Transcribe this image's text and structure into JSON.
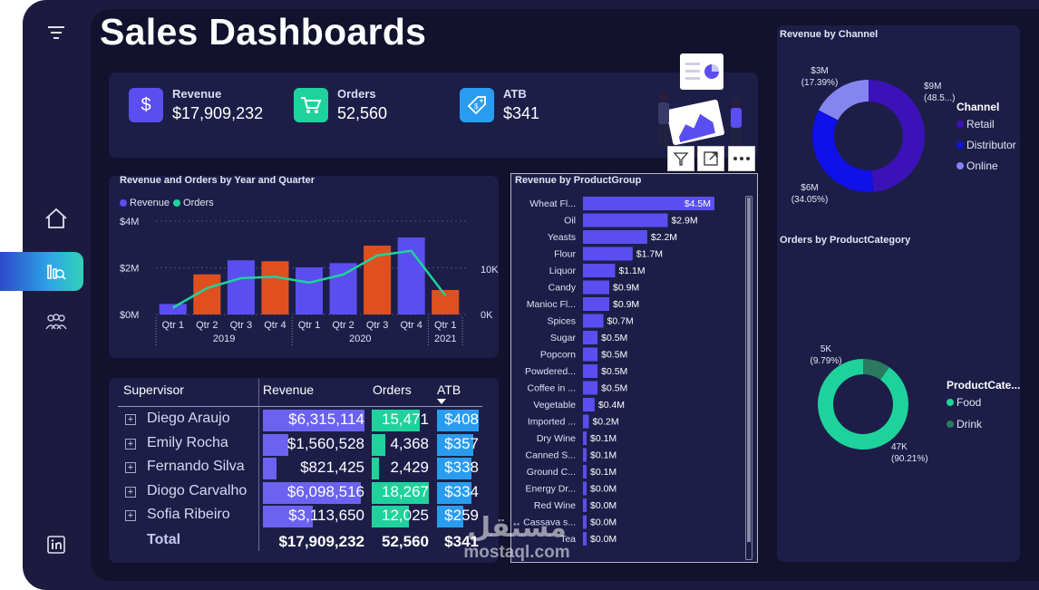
{
  "page": {
    "title": "Sales Dashboards"
  },
  "sidebar": {
    "icons": [
      "filter-icon",
      "home-icon",
      "analytics-icon",
      "users-icon",
      "linkedin-icon"
    ]
  },
  "kpis": [
    {
      "label": "Revenue",
      "value": "$17,909,232",
      "icon": "dollar-icon",
      "color": "#5b4ef0"
    },
    {
      "label": "Orders",
      "value": "52,560",
      "icon": "cart-icon",
      "color": "#1ed39b"
    },
    {
      "label": "ATB",
      "value": "$341",
      "icon": "tag-icon",
      "color": "#2a9cf0"
    }
  ],
  "year_quarter_chart": {
    "title": "Revenue and Orders by Year and Quarter",
    "legend": [
      "Revenue",
      "Orders"
    ],
    "left_axis_ticks": [
      "$4M",
      "$2M",
      "$0M"
    ],
    "right_axis_ticks": [
      "10K",
      "0K"
    ],
    "quarters": [
      "Qtr 1",
      "Qtr 2",
      "Qtr 3",
      "Qtr 4",
      "Qtr 1",
      "Qtr 2",
      "Qtr 3",
      "Qtr 4",
      "Qtr 1"
    ],
    "years": [
      "2019",
      "2020",
      "2021"
    ]
  },
  "product_group_chart": {
    "title": "Revenue by ProductGroup"
  },
  "table": {
    "headers": {
      "supervisor": "Supervisor",
      "revenue": "Revenue",
      "orders": "Orders",
      "atb": "ATB"
    },
    "rows": [
      {
        "name": "Diego Araujo",
        "revenue": "$6,315,114",
        "orders": "15,471",
        "atb": "$408"
      },
      {
        "name": "Emily Rocha",
        "revenue": "$1,560,528",
        "orders": "4,368",
        "atb": "$357"
      },
      {
        "name": "Fernando Silva",
        "revenue": "$821,425",
        "orders": "2,429",
        "atb": "$338"
      },
      {
        "name": "Diogo Carvalho",
        "revenue": "$6,098,516",
        "orders": "18,267",
        "atb": "$334"
      },
      {
        "name": "Sofia Ribeiro",
        "revenue": "$3,113,650",
        "orders": "12,025",
        "atb": "$259"
      }
    ],
    "total": {
      "label": "Total",
      "revenue": "$17,909,232",
      "orders": "52,560",
      "atb": "$341"
    }
  },
  "channel_chart": {
    "title": "Revenue by Channel",
    "legend_title": "Channel",
    "slices": [
      {
        "name": "Retail",
        "label": "$9M",
        "pct": "(48.5...)",
        "value": 48.56,
        "color": "#3a12b8"
      },
      {
        "name": "Distributor",
        "label": "$6M",
        "pct": "(34.05%)",
        "value": 34.05,
        "color": "#1010e8"
      },
      {
        "name": "Online",
        "label": "$3M",
        "pct": "(17.39%)",
        "value": 17.39,
        "color": "#8585f0"
      }
    ]
  },
  "category_chart": {
    "title": "Orders by ProductCategory",
    "legend_title": "ProductCate...",
    "slices": [
      {
        "name": "Food",
        "label": "47K",
        "pct": "(90.21%)",
        "value": 90.21,
        "color": "#1ed39b"
      },
      {
        "name": "Drink",
        "label": "5K",
        "pct": "(9.79%)",
        "value": 9.79,
        "color": "#2a7a60"
      }
    ]
  },
  "watermark": {
    "arabic": "مستقل",
    "latin": "mostaql.com"
  },
  "chart_data": [
    {
      "type": "bar",
      "title": "Revenue and Orders by Year and Quarter",
      "categories": [
        "2019 Qtr 1",
        "2019 Qtr 2",
        "2019 Qtr 3",
        "2019 Qtr 4",
        "2020 Qtr 1",
        "2020 Qtr 2",
        "2020 Qtr 3",
        "2020 Qtr 4",
        "2021 Qtr 1"
      ],
      "series": [
        {
          "name": "Revenue",
          "type": "bar",
          "values": [
            0.45,
            1.72,
            2.32,
            2.28,
            2.02,
            2.2,
            2.95,
            3.3,
            1.05
          ],
          "colors": [
            "#5b4ef0",
            "#e0501e",
            "#5b4ef0",
            "#e0501e",
            "#5b4ef0",
            "#5b4ef0",
            "#e0501e",
            "#5b4ef0",
            "#e0501e"
          ]
        },
        {
          "name": "Orders",
          "type": "line",
          "values": [
            1500,
            5800,
            8000,
            8300,
            7000,
            8800,
            13000,
            14000,
            4200
          ],
          "color": "#1ed39b"
        }
      ],
      "ylim_left": [
        0,
        4
      ],
      "ylim_right": [
        0,
        15000
      ],
      "grid": true,
      "legend": "top-left"
    },
    {
      "type": "bar",
      "orientation": "horizontal",
      "title": "Revenue by ProductGroup",
      "categories": [
        "Wheat Fl...",
        "Oil",
        "Yeasts",
        "Flour",
        "Liquor",
        "Candy",
        "Manioc Fl...",
        "Spices",
        "Sugar",
        "Popcorn",
        "Powdered...",
        "Coffee in ...",
        "Vegetable",
        "Imported ...",
        "Dry Wine",
        "Canned S...",
        "Ground C...",
        "Energy Dr...",
        "Red Wine",
        "Cassava s...",
        "Tea"
      ],
      "values": [
        4.5,
        2.9,
        2.2,
        1.7,
        1.1,
        0.9,
        0.9,
        0.7,
        0.5,
        0.5,
        0.5,
        0.5,
        0.4,
        0.2,
        0.1,
        0.1,
        0.1,
        0.0,
        0.0,
        0.0,
        0.0
      ],
      "labels": [
        "$4.5M",
        "$2.9M",
        "$2.2M",
        "$1.7M",
        "$1.1M",
        "$0.9M",
        "$0.9M",
        "$0.7M",
        "$0.5M",
        "$0.5M",
        "$0.5M",
        "$0.5M",
        "$0.4M",
        "$0.2M",
        "$0.1M",
        "$0.1M",
        "$0.1M",
        "$0.0M",
        "$0.0M",
        "$0.0M",
        "$0.0M"
      ],
      "color": "#5b4ef0"
    },
    {
      "type": "pie",
      "title": "Revenue by Channel",
      "categories": [
        "Retail",
        "Distributor",
        "Online"
      ],
      "values": [
        48.56,
        34.05,
        17.39
      ],
      "legend": "right"
    },
    {
      "type": "pie",
      "title": "Orders by ProductCategory",
      "categories": [
        "Food",
        "Drink"
      ],
      "values": [
        90.21,
        9.79
      ],
      "legend": "right"
    }
  ]
}
